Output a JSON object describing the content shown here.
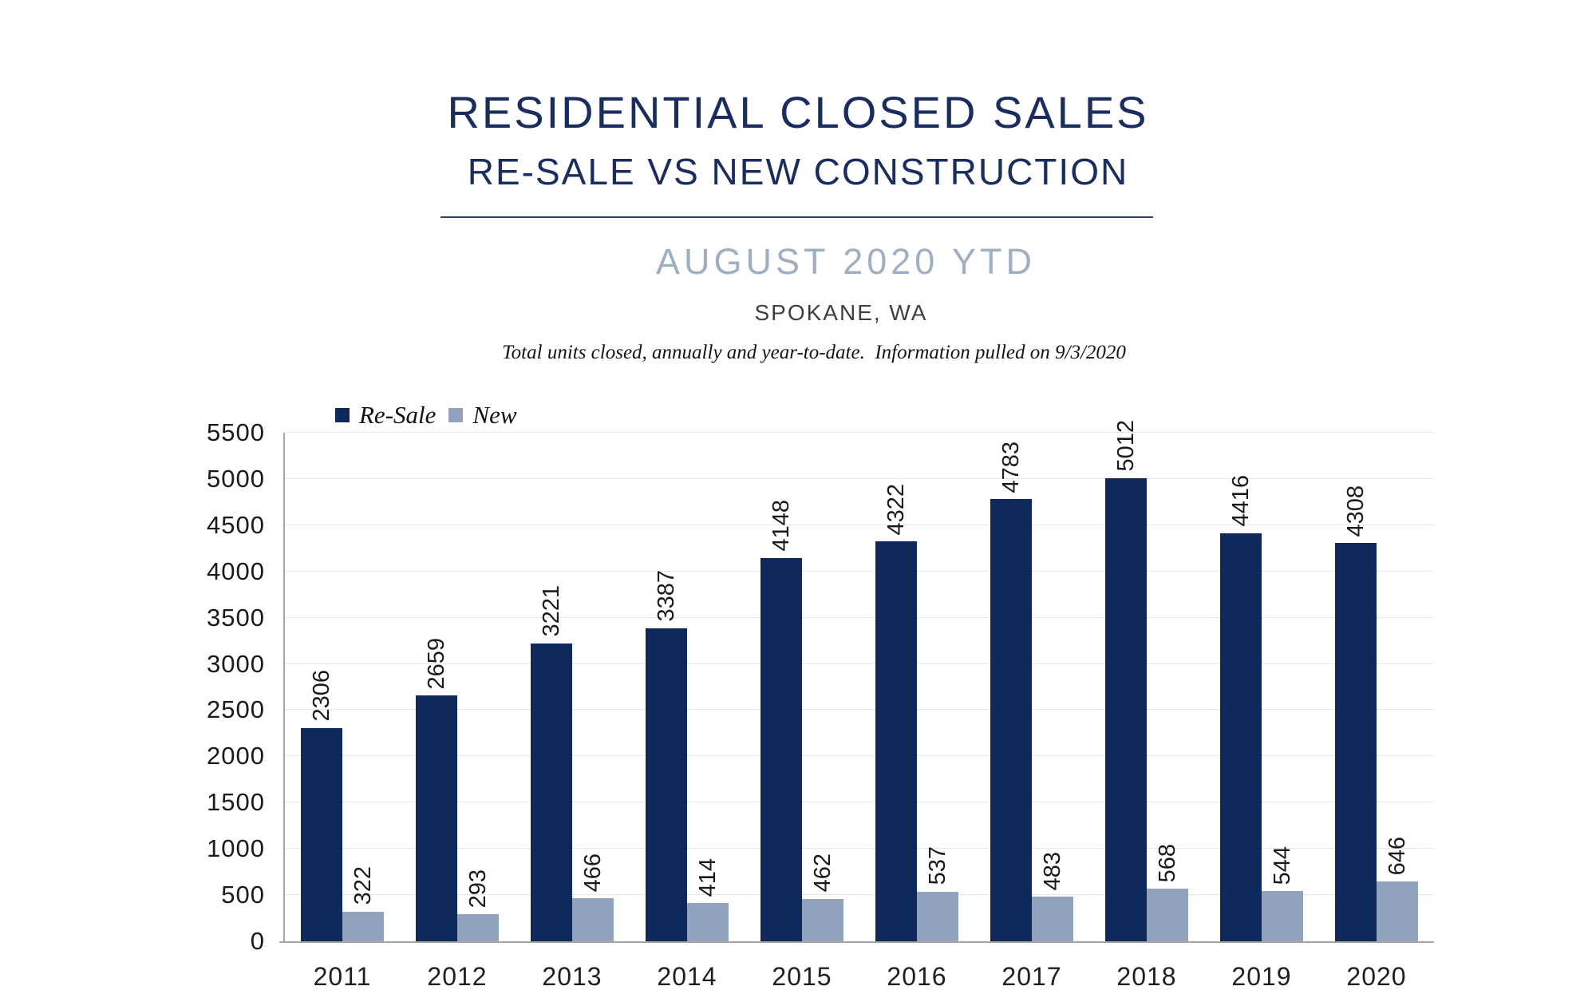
{
  "header": {
    "title": "RESIDENTIAL CLOSED SALES",
    "subtitle": "RE-SALE VS NEW CONSTRUCTION",
    "period": "AUGUST 2020 YTD",
    "location": "SPOKANE, WA",
    "note": "Total units closed, annually and year-to-date.  Information pulled on 9/3/2020"
  },
  "chart_data": {
    "type": "bar",
    "title": "Residential Closed Sales, Re-Sale vs New Construction, August 2020 YTD, Spokane WA",
    "categories": [
      "2011",
      "2012",
      "2013",
      "2014",
      "2015",
      "2016",
      "2017",
      "2018",
      "2019",
      "2020"
    ],
    "series": [
      {
        "name": "Re-Sale",
        "color": "#0e2a5c",
        "values": [
          2306,
          2659,
          3221,
          3387,
          4148,
          4322,
          4783,
          5012,
          4416,
          4308
        ]
      },
      {
        "name": "New",
        "color": "#92a2bd",
        "values": [
          322,
          293,
          466,
          414,
          462,
          537,
          483,
          568,
          544,
          646
        ]
      }
    ],
    "xlabel": "",
    "ylabel": "",
    "ylim": [
      0,
      5500
    ],
    "ytick_step": 500,
    "yticks": [
      0,
      500,
      1000,
      1500,
      2000,
      2500,
      3000,
      3500,
      4000,
      4500,
      5000,
      5500
    ],
    "grid": "horizontal",
    "legend_position": "top-left",
    "bar_value_labels": "rotated 90deg above bars",
    "colors": {
      "title_navy": "#1b2d5e",
      "period_gray_blue": "#9fafc3",
      "gridline": "#e3e6ed",
      "axis": "#a6a6a6",
      "label_text": "#1a1a1a"
    }
  }
}
